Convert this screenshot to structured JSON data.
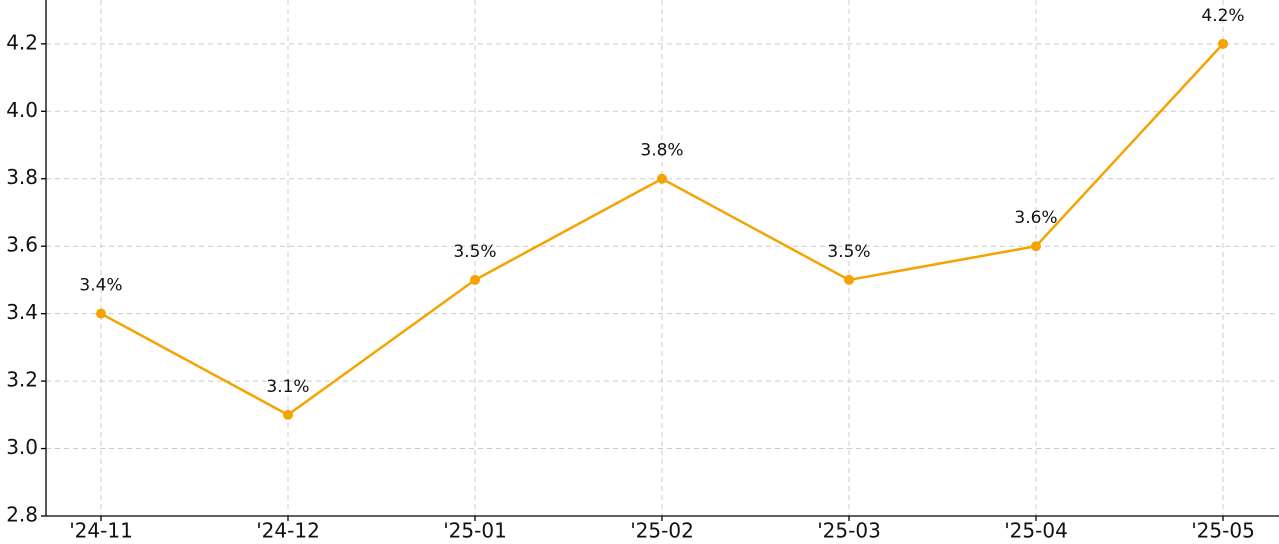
{
  "chart_data": {
    "type": "line",
    "categories": [
      "'24-11",
      "'24-12",
      "'25-01",
      "'25-02",
      "'25-03",
      "'25-04",
      "'25-05"
    ],
    "values": [
      3.4,
      3.1,
      3.5,
      3.8,
      3.5,
      3.6,
      4.2
    ],
    "value_labels": [
      "3.4%",
      "3.1%",
      "3.5%",
      "3.8%",
      "3.5%",
      "3.6%",
      "4.2%"
    ],
    "color": "#f5a300",
    "ylim": [
      2.8,
      4.33
    ],
    "yticks": [
      2.8,
      {
        "value": 3,
        "label": "3.0"
      },
      3.2,
      3.4,
      3.6,
      3.8,
      {
        "value": 4,
        "label": "4.0"
      },
      4.2
    ],
    "grid": true
  }
}
